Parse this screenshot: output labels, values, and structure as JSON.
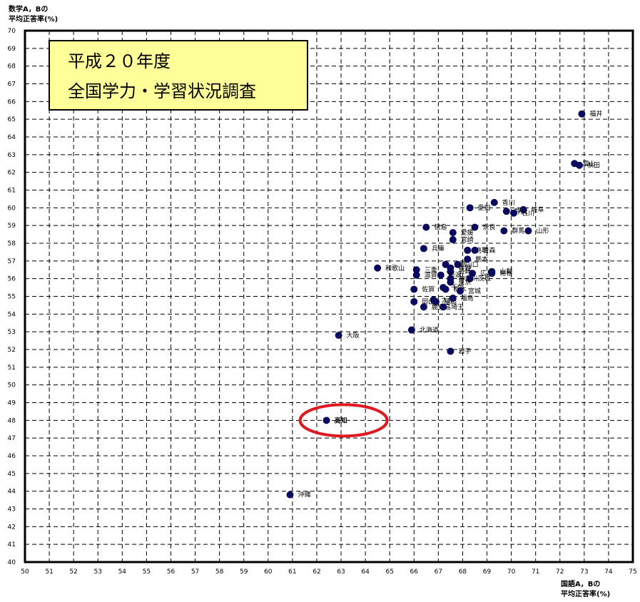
{
  "chart_data": {
    "type": "scatter",
    "title_lines": [
      "平成２０年度",
      "全国学力・学習状況調査"
    ],
    "ylabel_lines": [
      "数学A，Bの",
      "平均正答率(%)"
    ],
    "xlabel_lines": [
      "国語A，Bの",
      "平均正答率(%)"
    ],
    "xlim": [
      50,
      75
    ],
    "ylim": [
      40,
      70
    ],
    "xticks": [
      50,
      51,
      52,
      53,
      54,
      55,
      56,
      57,
      58,
      59,
      60,
      61,
      62,
      63,
      64,
      65,
      66,
      67,
      68,
      69,
      70,
      71,
      72,
      73,
      74,
      75
    ],
    "yticks": [
      40,
      41,
      42,
      43,
      44,
      45,
      46,
      47,
      48,
      49,
      50,
      51,
      52,
      53,
      54,
      55,
      56,
      57,
      58,
      59,
      60,
      61,
      62,
      63,
      64,
      65,
      66,
      67,
      68,
      69,
      70
    ],
    "grid": true,
    "marker_color": "#0a0a5e",
    "highlight_color": "#e0191e",
    "highlight": "高知",
    "points": [
      {
        "name": "福井",
        "x": 72.9,
        "y": 65.3
      },
      {
        "name": "富山",
        "x": 72.6,
        "y": 62.5
      },
      {
        "name": "秋田",
        "x": 72.8,
        "y": 62.4
      },
      {
        "name": "香川",
        "x": 69.3,
        "y": 60.3
      },
      {
        "name": "愛知",
        "x": 68.3,
        "y": 60.0
      },
      {
        "name": "静岡",
        "x": 69.8,
        "y": 59.8
      },
      {
        "name": "岐阜",
        "x": 70.5,
        "y": 59.9
      },
      {
        "name": "石川",
        "x": 70.1,
        "y": 59.7
      },
      {
        "name": "徳島",
        "x": 66.5,
        "y": 58.9
      },
      {
        "name": "奈良",
        "x": 68.5,
        "y": 58.9
      },
      {
        "name": "山形",
        "x": 70.7,
        "y": 58.7
      },
      {
        "name": "愛媛",
        "x": 67.6,
        "y": 58.6
      },
      {
        "name": "群馬",
        "x": 69.7,
        "y": 58.7
      },
      {
        "name": "宮崎",
        "x": 67.6,
        "y": 58.2
      },
      {
        "name": "兵庫",
        "x": 66.4,
        "y": 57.7
      },
      {
        "name": "鳥取",
        "x": 68.2,
        "y": 57.6
      },
      {
        "name": "青森",
        "x": 68.5,
        "y": 57.6
      },
      {
        "name": "熊本",
        "x": 68.2,
        "y": 57.1
      },
      {
        "name": "京都",
        "x": 67.3,
        "y": 56.8
      },
      {
        "name": "山口",
        "x": 67.8,
        "y": 56.8
      },
      {
        "name": "長野",
        "x": 67.5,
        "y": 56.6
      },
      {
        "name": "三重",
        "x": 66.1,
        "y": 56.5
      },
      {
        "name": "和歌山",
        "x": 64.5,
        "y": 56.6
      },
      {
        "name": "山梨",
        "x": 69.2,
        "y": 56.4
      },
      {
        "name": "長崎",
        "x": 67.5,
        "y": 56.4
      },
      {
        "name": "広島",
        "x": 68.4,
        "y": 56.3
      },
      {
        "name": "島根",
        "x": 69.2,
        "y": 56.3
      },
      {
        "name": "滋賀",
        "x": 66.1,
        "y": 56.2
      },
      {
        "name": "新潟",
        "x": 67.1,
        "y": 56.2
      },
      {
        "name": "神奈川",
        "x": 67.5,
        "y": 56.0
      },
      {
        "name": "茨城",
        "x": 68.3,
        "y": 56.0
      },
      {
        "name": "東京",
        "x": 67.5,
        "y": 55.8
      },
      {
        "name": "千葉",
        "x": 67.2,
        "y": 55.5
      },
      {
        "name": "栃木",
        "x": 67.3,
        "y": 55.4
      },
      {
        "name": "佐賀",
        "x": 66.0,
        "y": 55.4
      },
      {
        "name": "宮城",
        "x": 67.9,
        "y": 55.3
      },
      {
        "name": "大分",
        "x": 66.8,
        "y": 54.8
      },
      {
        "name": "岡山",
        "x": 66.0,
        "y": 54.7
      },
      {
        "name": "福岡",
        "x": 66.9,
        "y": 54.7
      },
      {
        "name": "福島",
        "x": 67.6,
        "y": 54.9
      },
      {
        "name": "鹿児島",
        "x": 66.4,
        "y": 54.4
      },
      {
        "name": "埼玉",
        "x": 67.2,
        "y": 54.4
      },
      {
        "name": "北海道",
        "x": 65.9,
        "y": 53.1
      },
      {
        "name": "大阪",
        "x": 62.9,
        "y": 52.8
      },
      {
        "name": "岩手",
        "x": 67.5,
        "y": 51.9
      },
      {
        "name": "高知",
        "x": 62.4,
        "y": 48.0
      },
      {
        "name": "沖縄",
        "x": 60.9,
        "y": 43.8
      }
    ]
  }
}
